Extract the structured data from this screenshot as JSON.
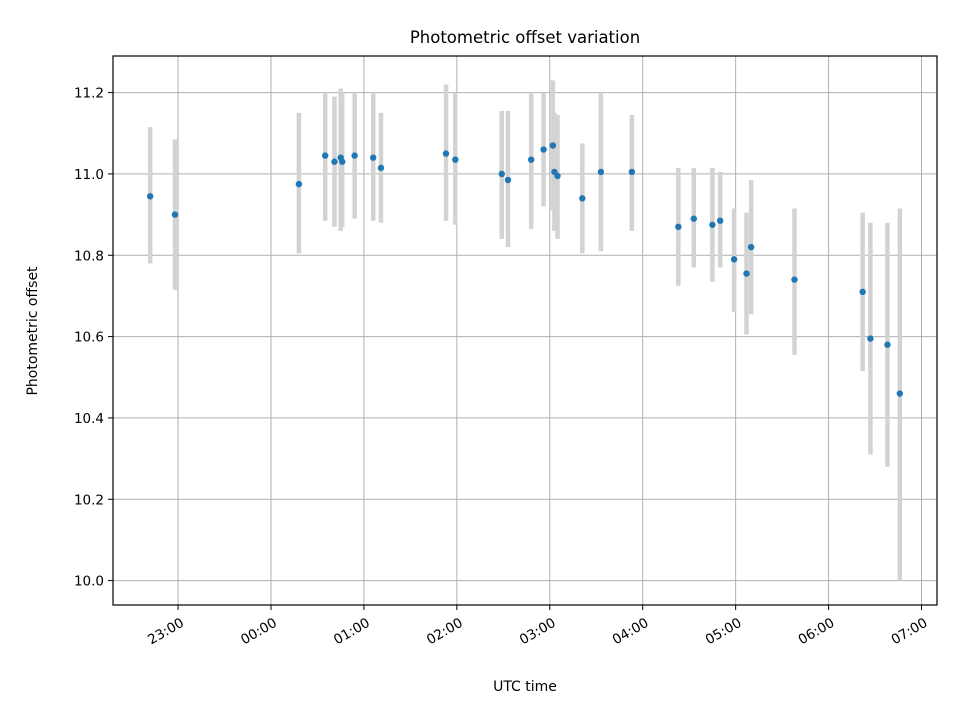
{
  "chart_data": {
    "type": "scatter",
    "title": "Photometric offset variation",
    "xlabel": "UTC time",
    "ylabel": "Photometric offset",
    "grid": true,
    "x_range": [
      "22:18",
      "07:10"
    ],
    "ylim": [
      9.94,
      11.29
    ],
    "x_ticks": [
      "23:00",
      "00:00",
      "01:00",
      "02:00",
      "03:00",
      "04:00",
      "05:00",
      "06:00",
      "07:00"
    ],
    "y_ticks": [
      "10.0",
      "10.2",
      "10.4",
      "10.6",
      "10.8",
      "11.0",
      "11.2"
    ],
    "colors": {
      "marker": "#1f77b4",
      "errorbar": "#d3d3d3"
    },
    "points": [
      {
        "x": "22:42",
        "y": 10.945,
        "yerr_low": 10.78,
        "yerr_high": 11.115
      },
      {
        "x": "22:58",
        "y": 10.9,
        "yerr_low": 10.715,
        "yerr_high": 11.085
      },
      {
        "x": "00:18",
        "y": 10.975,
        "yerr_low": 10.805,
        "yerr_high": 11.15
      },
      {
        "x": "00:35",
        "y": 11.045,
        "yerr_low": 10.885,
        "yerr_high": 11.2
      },
      {
        "x": "00:41",
        "y": 11.03,
        "yerr_low": 10.87,
        "yerr_high": 11.19
      },
      {
        "x": "00:45",
        "y": 11.04,
        "yerr_low": 10.86,
        "yerr_high": 11.21
      },
      {
        "x": "00:46",
        "y": 11.03,
        "yerr_low": 10.87,
        "yerr_high": 11.2
      },
      {
        "x": "00:54",
        "y": 11.045,
        "yerr_low": 10.89,
        "yerr_high": 11.2
      },
      {
        "x": "01:06",
        "y": 11.04,
        "yerr_low": 10.885,
        "yerr_high": 11.2
      },
      {
        "x": "01:11",
        "y": 11.015,
        "yerr_low": 10.88,
        "yerr_high": 11.15
      },
      {
        "x": "01:53",
        "y": 11.05,
        "yerr_low": 10.885,
        "yerr_high": 11.22
      },
      {
        "x": "01:59",
        "y": 11.035,
        "yerr_low": 10.875,
        "yerr_high": 11.2
      },
      {
        "x": "02:29",
        "y": 11.0,
        "yerr_low": 10.84,
        "yerr_high": 11.155
      },
      {
        "x": "02:33",
        "y": 10.985,
        "yerr_low": 10.82,
        "yerr_high": 11.155
      },
      {
        "x": "02:48",
        "y": 11.035,
        "yerr_low": 10.865,
        "yerr_high": 11.2
      },
      {
        "x": "02:56",
        "y": 11.06,
        "yerr_low": 10.92,
        "yerr_high": 11.2
      },
      {
        "x": "03:02",
        "y": 11.07,
        "yerr_low": 10.91,
        "yerr_high": 11.23
      },
      {
        "x": "03:03",
        "y": 11.005,
        "yerr_low": 10.86,
        "yerr_high": 11.15
      },
      {
        "x": "03:05",
        "y": 10.995,
        "yerr_low": 10.84,
        "yerr_high": 11.145
      },
      {
        "x": "03:21",
        "y": 10.94,
        "yerr_low": 10.805,
        "yerr_high": 11.075
      },
      {
        "x": "03:33",
        "y": 11.005,
        "yerr_low": 10.81,
        "yerr_high": 11.2
      },
      {
        "x": "03:53",
        "y": 11.005,
        "yerr_low": 10.86,
        "yerr_high": 11.145
      },
      {
        "x": "04:23",
        "y": 10.87,
        "yerr_low": 10.725,
        "yerr_high": 11.015
      },
      {
        "x": "04:33",
        "y": 10.89,
        "yerr_low": 10.77,
        "yerr_high": 11.015
      },
      {
        "x": "04:45",
        "y": 10.875,
        "yerr_low": 10.735,
        "yerr_high": 11.015
      },
      {
        "x": "04:50",
        "y": 10.885,
        "yerr_low": 10.77,
        "yerr_high": 11.005
      },
      {
        "x": "04:59",
        "y": 10.79,
        "yerr_low": 10.66,
        "yerr_high": 10.915
      },
      {
        "x": "05:07",
        "y": 10.755,
        "yerr_low": 10.605,
        "yerr_high": 10.905
      },
      {
        "x": "05:10",
        "y": 10.82,
        "yerr_low": 10.655,
        "yerr_high": 10.985
      },
      {
        "x": "05:38",
        "y": 10.74,
        "yerr_low": 10.555,
        "yerr_high": 10.915
      },
      {
        "x": "06:22",
        "y": 10.71,
        "yerr_low": 10.515,
        "yerr_high": 10.905
      },
      {
        "x": "06:27",
        "y": 10.595,
        "yerr_low": 10.31,
        "yerr_high": 10.88
      },
      {
        "x": "06:38",
        "y": 10.58,
        "yerr_low": 10.28,
        "yerr_high": 10.88
      },
      {
        "x": "06:46",
        "y": 10.46,
        "yerr_low": 10.0,
        "yerr_high": 10.915
      }
    ]
  }
}
